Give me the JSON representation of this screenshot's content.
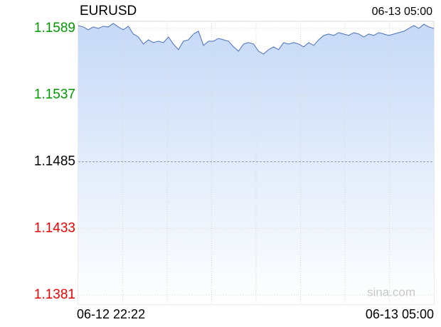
{
  "chart_data": {
    "type": "area",
    "title": "EURUSD",
    "timestamp": "06-13 05:00",
    "watermark": "sina.com",
    "color": "#4a6fbf",
    "fill_top": "#c6d9f7",
    "fill_bottom": "#ffffff",
    "categories": [
      "06-12 22:22",
      null,
      null,
      null,
      null,
      null,
      null,
      null,
      null,
      null,
      null,
      null,
      null,
      null,
      null,
      null,
      null,
      null,
      null,
      null,
      null,
      null,
      null,
      null,
      null,
      null,
      null,
      null,
      null,
      null,
      null,
      null,
      null,
      null,
      null,
      null,
      null,
      null,
      null,
      null,
      null,
      null,
      null,
      null,
      null,
      null,
      null,
      null,
      null,
      null,
      null,
      null,
      null,
      null,
      null,
      null,
      null,
      null,
      null,
      null,
      null,
      null,
      null,
      null,
      null,
      null,
      null,
      null,
      null,
      null,
      null,
      "06-13 05:00"
    ],
    "values": [
      1.15912,
      1.15901,
      1.15879,
      1.15901,
      1.1589,
      1.15907,
      1.15901,
      1.15929,
      1.15901,
      1.15879,
      1.15907,
      1.15846,
      1.15823,
      1.15768,
      1.15801,
      1.15779,
      1.1579,
      1.15779,
      1.15823,
      1.15768,
      1.15724,
      1.1579,
      1.15801,
      1.15846,
      1.15868,
      1.15757,
      1.1579,
      1.1579,
      1.15812,
      1.15801,
      1.1579,
      1.15746,
      1.15712,
      1.15768,
      1.15779,
      1.15768,
      1.15712,
      1.1569,
      1.15724,
      1.15746,
      1.15724,
      1.15779,
      1.15768,
      1.15779,
      1.15768,
      1.15746,
      1.15779,
      1.15757,
      1.15801,
      1.15835,
      1.15846,
      1.15835,
      1.15857,
      1.15846,
      1.15835,
      1.15857,
      1.15846,
      1.15823,
      1.15846,
      1.15835,
      1.15857,
      1.15846,
      1.15835,
      1.15846,
      1.15857,
      1.15868,
      1.1589,
      1.15912,
      1.1589,
      1.15923,
      1.15901,
      1.1589
    ],
    "ylim": [
      1.13738,
      1.15945
    ],
    "yticks": [
      1.1589,
      1.1537,
      1.1485,
      1.1433,
      1.1381
    ],
    "ytick_colors": [
      "#009900",
      "#009900",
      "#000000",
      "#ee0000",
      "#ee0000"
    ],
    "grid": true
  }
}
